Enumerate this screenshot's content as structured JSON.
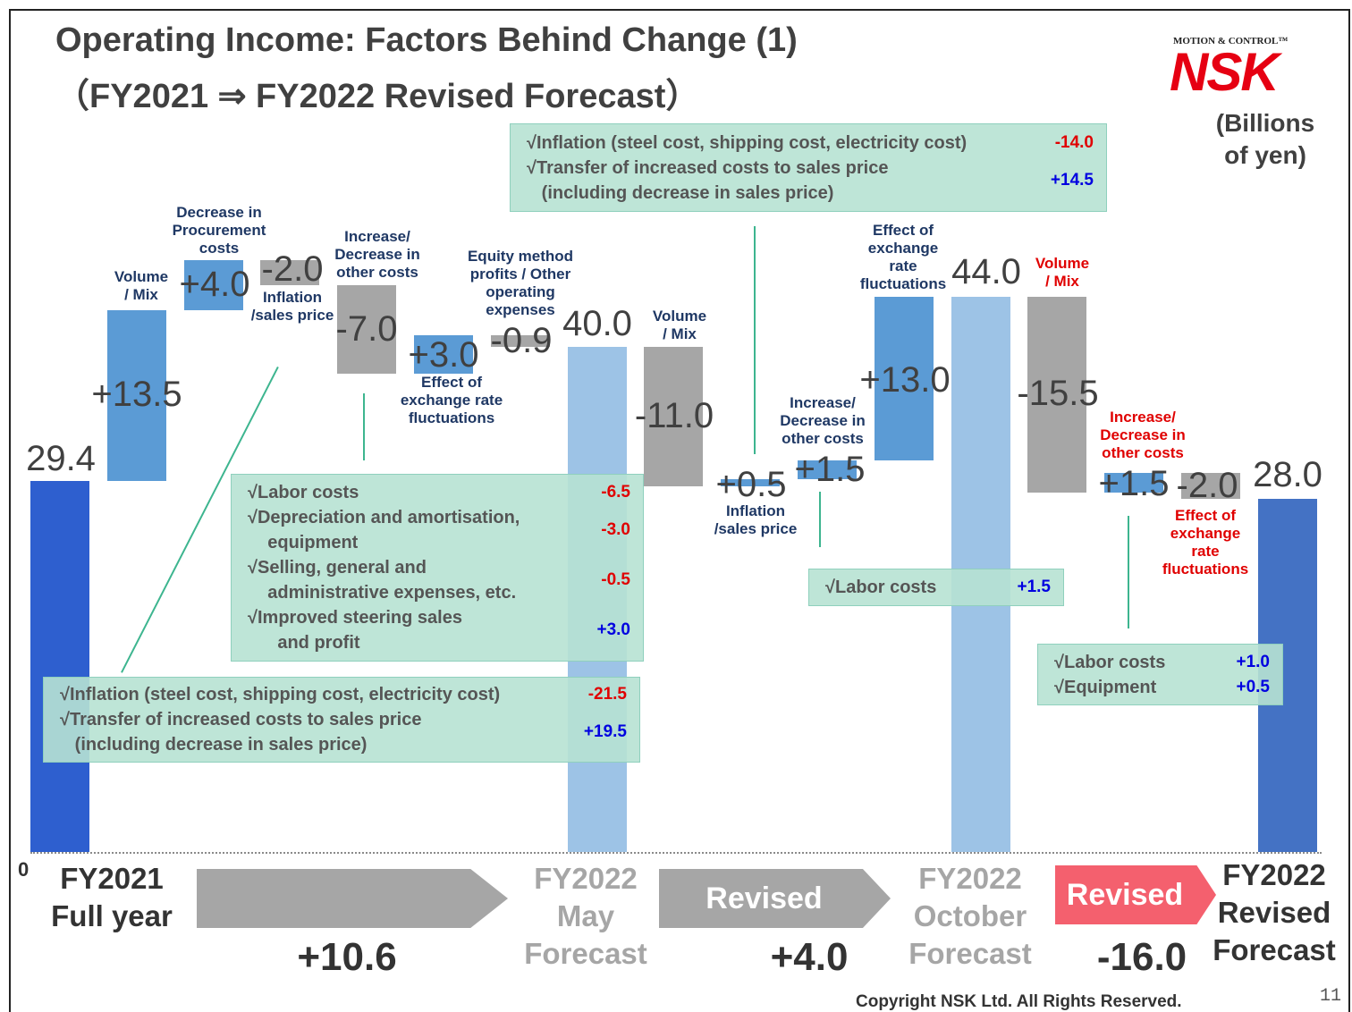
{
  "chart_data": {
    "type": "waterfall",
    "title": "Operating Income: Factors Behind Change (1)",
    "subtitle": "（FY2021  ⇒ FY2022 Revised Forecast）",
    "unit_label": "(Billions\nof yen)",
    "categories": [
      "FY2021\nFull year",
      "Volume\n/ Mix",
      "Decrease in\nProcurement\ncosts",
      "Inflation\n/sales price",
      "Increase/\nDecrease in\nother costs",
      "Effect of\nexchange rate\nfluctuations",
      "Equity  method\nprofits / Other\noperating\nexpenses",
      "FY2022\nMay\nForecast",
      "Volume\n/ Mix",
      "Inflation\n/sales price",
      "Increase/\nDecrease in\nother costs",
      "Effect of\nexchange\nrate\nfluctuations",
      "FY2022\nOctober\nForecast",
      "Volume\n/ Mix",
      "Increase/\nDecrease in\nother costs",
      "Effect of\nexchange\nrate\nfluctuations",
      "FY2022\nRevised\nForecast"
    ],
    "measures": [
      "total",
      "relative",
      "relative",
      "relative",
      "relative",
      "relative",
      "relative",
      "total",
      "relative",
      "relative",
      "relative",
      "relative",
      "total",
      "relative",
      "relative",
      "relative",
      "total"
    ],
    "values": [
      29.4,
      13.5,
      4.0,
      -2.0,
      -7.0,
      3.0,
      -0.9,
      40.0,
      -11.0,
      0.5,
      1.5,
      13.0,
      44.0,
      -15.5,
      1.5,
      -2.0,
      28.0
    ],
    "value_labels": [
      "29.4",
      "+13.5",
      "+4.0",
      "-2.0",
      "-7.0",
      "+3.0",
      "-0.9",
      "40.0",
      "-11.0",
      "+0.5",
      "+1.5",
      "+13.0",
      "44.0",
      "-15.5",
      "+1.5",
      "-2.0",
      "28.0"
    ],
    "colors": [
      "#2e5fcf",
      "#5b9bd5",
      "#5b9bd5",
      "#a6a6a6",
      "#a6a6a6",
      "#5b9bd5",
      "#a6a6a6",
      "#9dc3e6",
      "#a6a6a6",
      "#5b9bd5",
      "#5b9bd5",
      "#5b9bd5",
      "#9dc3e6",
      "#a6a6a6",
      "#5b9bd5",
      "#a6a6a6",
      "#4472c4"
    ],
    "category_colors": [
      "#333333",
      "#1f3864",
      "#1f3864",
      "#1f3864",
      "#1f3864",
      "#1f3864",
      "#1f3864",
      "#a6a6a6",
      "#1f3864",
      "#1f3864",
      "#1f3864",
      "#1f3864",
      "#a6a6a6",
      "#e00000",
      "#e00000",
      "#e00000",
      "#333333"
    ],
    "ylim": [
      0,
      50
    ],
    "yticks": [
      0
    ],
    "annotations": [
      {
        "items": [
          {
            "text": "√Inflation (steel cost, shipping cost, electricity cost)",
            "value_label": "-14.0"
          },
          {
            "text": "√Transfer of increased costs to sales price\n   (including decrease in sales price)",
            "value_label": "+14.5"
          }
        ]
      },
      {
        "items": [
          {
            "text": "√Labor costs",
            "value_label": "-6.5"
          },
          {
            "text": "√Depreciation and amortisation,\n    equipment",
            "value_label": "-3.0"
          },
          {
            "text": "√Selling, general and\n    administrative expenses, etc.",
            "value_label": "-0.5"
          },
          {
            "text": "√Improved steering sales\n      and profit",
            "value_label": "+3.0"
          }
        ]
      },
      {
        "items": [
          {
            "text": "√Inflation (steel cost, shipping cost, electricity cost)",
            "value_label": "-21.5"
          },
          {
            "text": "√Transfer of increased costs to sales price\n   (including decrease in sales price)",
            "value_label": "+19.5"
          }
        ]
      },
      {
        "items": [
          {
            "text": "√Labor costs",
            "value_label": "+1.5"
          }
        ]
      },
      {
        "items": [
          {
            "text": "√Labor costs",
            "value_label": "+1.0"
          },
          {
            "text": "√Equipment",
            "value_label": "+0.5"
          }
        ]
      }
    ],
    "transitions": [
      {
        "value_label": "+10.6"
      },
      {
        "text": "Revised",
        "value_label": "+4.0"
      },
      {
        "text": "Revised",
        "value_label": "-16.0"
      }
    ]
  },
  "logo": {
    "tagline": "MOTION & CONTROL™",
    "name": "NSK"
  },
  "footer": {
    "copyright": "Copyright NSK Ltd. All Rights Reserved.",
    "page": "11"
  }
}
